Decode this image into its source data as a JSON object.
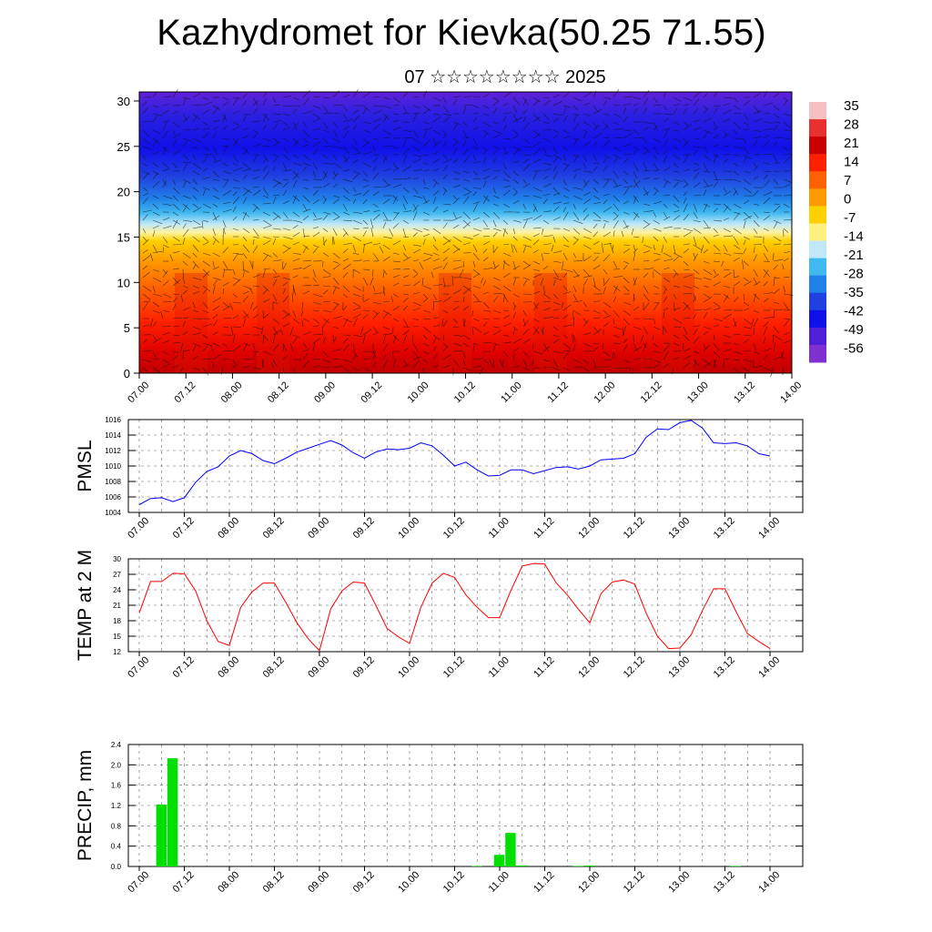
{
  "header": {
    "title": "Kazhydromet for Kievka(50.25 71.55)",
    "subtitle": "07 ☆☆☆☆☆☆☆☆ 2025"
  },
  "colors": {
    "pmsl_line": "#0000ff",
    "temp_line": "#ff0000",
    "precip_bar": "#00e000",
    "grid": "#666666"
  },
  "time_ticks": [
    "07.00",
    "07.12",
    "08.00",
    "08.12",
    "09.00",
    "09.12",
    "10.00",
    "10.12",
    "11.00",
    "11.12",
    "12.00",
    "12.12",
    "13.00",
    "13.12",
    "14.00"
  ],
  "chart_data": [
    {
      "type": "heatmap",
      "name": "cross-section",
      "ylim": [
        0,
        31
      ],
      "yticks": [
        0,
        5,
        10,
        15,
        20,
        25,
        30
      ],
      "colorbar_labels": [
        "35",
        "28",
        "21",
        "14",
        "7",
        "0",
        "-7",
        "-14",
        "-21",
        "-28",
        "-35",
        "-42",
        "-49",
        "-56"
      ],
      "colorbar_colors": [
        "#f4c0c0",
        "#e83030",
        "#c80000",
        "#ff2000",
        "#ff6000",
        "#ff9a00",
        "#ffd000",
        "#fff080",
        "#c0e8f8",
        "#40b8f0",
        "#2080e8",
        "#2040e0",
        "#1010e8",
        "#5020d8",
        "#8030d0"
      ]
    },
    {
      "type": "line",
      "ylabel": "PMSL",
      "ylim": [
        1004,
        1016
      ],
      "yticks": [
        1004,
        1006,
        1008,
        1010,
        1012,
        1014,
        1016
      ],
      "x_start": "07.00",
      "step_hours": 3,
      "values": [
        1005.0,
        1005.8,
        1005.9,
        1005.4,
        1005.9,
        1007.9,
        1009.3,
        1009.9,
        1011.3,
        1012.0,
        1011.6,
        1010.7,
        1010.3,
        1011.0,
        1011.8,
        1012.3,
        1012.8,
        1013.3,
        1012.7,
        1011.7,
        1011.0,
        1011.8,
        1012.2,
        1012.1,
        1012.3,
        1013.0,
        1012.6,
        1011.4,
        1010.0,
        1010.5,
        1009.5,
        1008.7,
        1008.8,
        1009.5,
        1009.5,
        1009.0,
        1009.4,
        1009.8,
        1009.9,
        1009.6,
        1010.0,
        1010.8,
        1010.9,
        1011.0,
        1011.6,
        1013.7,
        1014.8,
        1014.7,
        1015.6,
        1015.9,
        1014.9,
        1013.0,
        1012.9,
        1013.0,
        1012.6,
        1011.6,
        1011.3
      ]
    },
    {
      "type": "line",
      "ylabel": "TEMP at 2 M",
      "ylim": [
        12,
        30
      ],
      "yticks": [
        12,
        15,
        18,
        21,
        24,
        27,
        30
      ],
      "x_start": "07.00",
      "step_hours": 3,
      "values": [
        19.5,
        25.6,
        25.6,
        27.2,
        27.1,
        23.8,
        18.0,
        14.0,
        13.2,
        20.6,
        23.6,
        25.3,
        25.3,
        21.6,
        17.6,
        14.5,
        12.2,
        20.3,
        23.8,
        25.5,
        25.3,
        21.0,
        16.5,
        14.9,
        13.6,
        20.6,
        25.3,
        27.2,
        26.4,
        23.0,
        20.6,
        18.6,
        18.6,
        23.9,
        28.6,
        29.1,
        29.0,
        25.4,
        23.0,
        20.2,
        17.6,
        23.3,
        25.5,
        25.9,
        25.1,
        19.5,
        15.0,
        12.6,
        12.7,
        15.3,
        20.0,
        24.2,
        24.2,
        19.7,
        15.5,
        14.0,
        12.6
      ]
    },
    {
      "type": "bar",
      "ylabel": "PRECIP, mm",
      "ylim": [
        0,
        2.4
      ],
      "yticks": [
        "0.0",
        "0.4",
        "0.8",
        "1.2",
        "1.6",
        "2.0",
        "2.4"
      ],
      "x_start": "07.00",
      "step_hours": 3,
      "values": [
        0,
        0,
        1.22,
        2.13,
        0,
        0,
        0,
        0,
        0,
        0,
        0,
        0,
        0,
        0,
        0,
        0,
        0,
        0,
        0,
        0,
        0,
        0,
        0,
        0,
        0,
        0,
        0,
        0,
        0,
        0,
        0.01,
        0,
        0.23,
        0.66,
        0.02,
        0,
        0,
        0,
        0,
        0.01,
        0.02,
        0,
        0,
        0,
        0,
        0,
        0,
        0,
        0,
        0,
        0,
        0,
        0,
        0.01,
        0,
        0,
        0
      ]
    }
  ]
}
